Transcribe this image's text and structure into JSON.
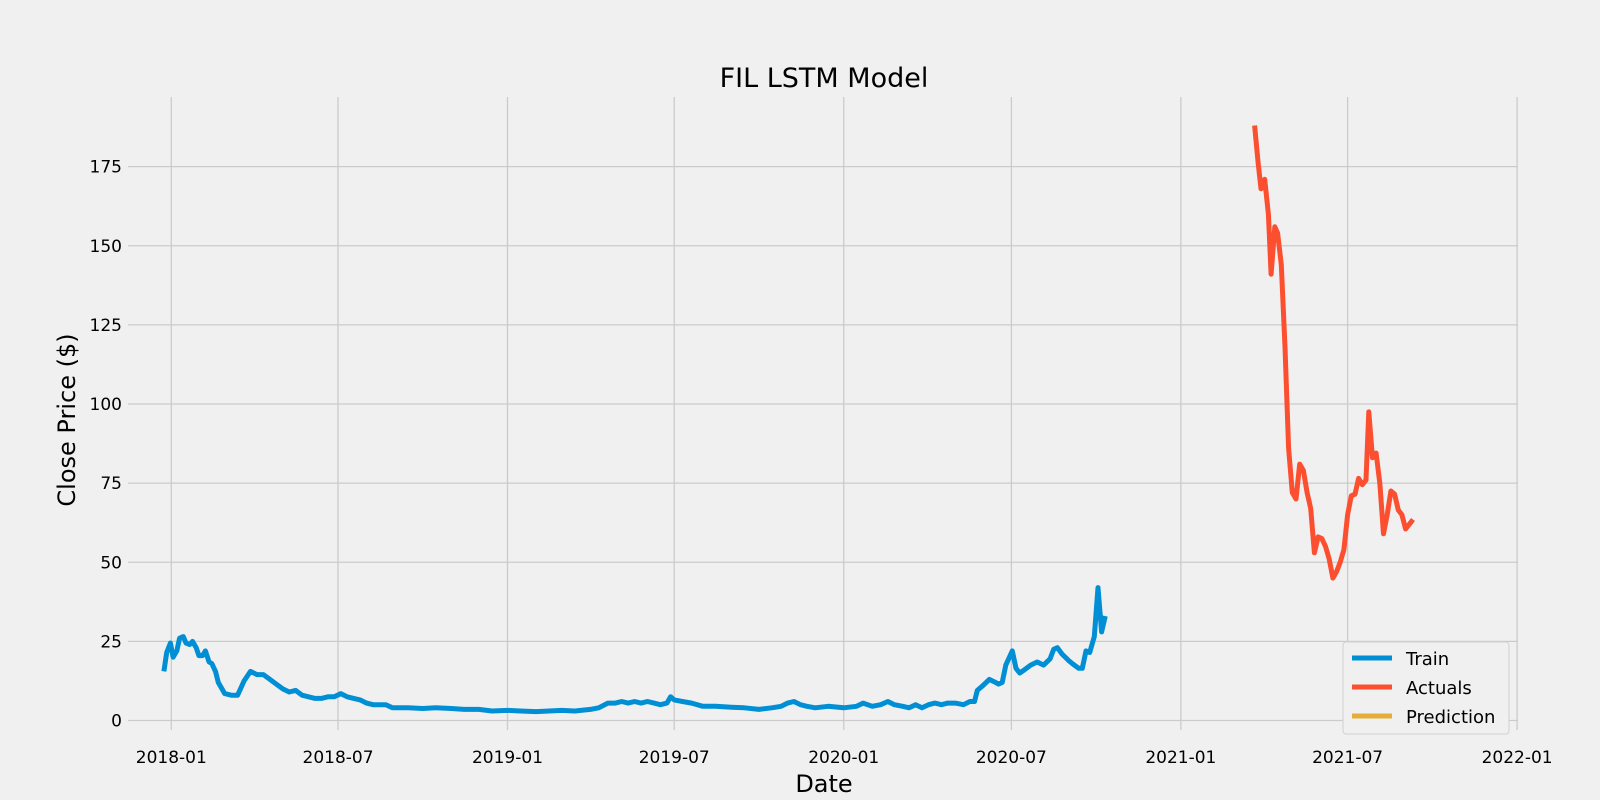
{
  "chart_data": {
    "type": "line",
    "title": "FIL LSTM Model",
    "xlabel": "Date",
    "ylabel": "Close Price ($)",
    "x_ticks": [
      "2018-01",
      "2018-07",
      "2019-01",
      "2019-07",
      "2020-01",
      "2020-07",
      "2021-01",
      "2021-07",
      "2022-01"
    ],
    "y_ticks": [
      0,
      25,
      50,
      75,
      100,
      125,
      150,
      175
    ],
    "ylim": [
      -3,
      197
    ],
    "xlim": [
      "2017-11-15",
      "2022-01-02"
    ],
    "grid": true,
    "legend_position": "bottom-right",
    "colors": {
      "background": "#f0f0f0",
      "grid": "#cbcbcb"
    },
    "series": [
      {
        "name": "Train",
        "color": "#008fd5",
        "points": [
          [
            "2017-12-24",
            15.5
          ],
          [
            "2017-12-27",
            21.5
          ],
          [
            "2017-12-31",
            24.5
          ],
          [
            "2018-01-03",
            20.0
          ],
          [
            "2018-01-07",
            22.0
          ],
          [
            "2018-01-10",
            26.0
          ],
          [
            "2018-01-14",
            26.5
          ],
          [
            "2018-01-17",
            24.5
          ],
          [
            "2018-01-21",
            24.0
          ],
          [
            "2018-01-24",
            25.0
          ],
          [
            "2018-01-28",
            23.0
          ],
          [
            "2018-01-31",
            20.5
          ],
          [
            "2018-02-04",
            20.5
          ],
          [
            "2018-02-07",
            22.0
          ],
          [
            "2018-02-11",
            18.5
          ],
          [
            "2018-02-14",
            18.0
          ],
          [
            "2018-02-18",
            15.5
          ],
          [
            "2018-02-21",
            12.0
          ],
          [
            "2018-02-25",
            10.0
          ],
          [
            "2018-02-28",
            8.5
          ],
          [
            "2018-03-07",
            8.0
          ],
          [
            "2018-03-14",
            8.0
          ],
          [
            "2018-03-21",
            12.5
          ],
          [
            "2018-03-28",
            15.5
          ],
          [
            "2018-04-04",
            14.5
          ],
          [
            "2018-04-11",
            14.5
          ],
          [
            "2018-04-18",
            13.0
          ],
          [
            "2018-04-25",
            11.5
          ],
          [
            "2018-05-02",
            10.0
          ],
          [
            "2018-05-09",
            9.0
          ],
          [
            "2018-05-16",
            9.5
          ],
          [
            "2018-05-23",
            8.0
          ],
          [
            "2018-05-30",
            7.5
          ],
          [
            "2018-06-06",
            7.0
          ],
          [
            "2018-06-13",
            7.0
          ],
          [
            "2018-06-20",
            7.5
          ],
          [
            "2018-06-27",
            7.5
          ],
          [
            "2018-07-04",
            8.5
          ],
          [
            "2018-07-11",
            7.5
          ],
          [
            "2018-07-18",
            7.0
          ],
          [
            "2018-07-25",
            6.5
          ],
          [
            "2018-08-01",
            5.5
          ],
          [
            "2018-08-08",
            5.0
          ],
          [
            "2018-08-15",
            5.0
          ],
          [
            "2018-08-22",
            5.0
          ],
          [
            "2018-08-29",
            4.0
          ],
          [
            "2018-09-15",
            4.0
          ],
          [
            "2018-10-01",
            3.8
          ],
          [
            "2018-10-15",
            4.0
          ],
          [
            "2018-11-01",
            3.8
          ],
          [
            "2018-11-15",
            3.5
          ],
          [
            "2018-12-01",
            3.5
          ],
          [
            "2018-12-15",
            3.0
          ],
          [
            "2019-01-01",
            3.2
          ],
          [
            "2019-01-15",
            3.0
          ],
          [
            "2019-02-01",
            2.8
          ],
          [
            "2019-02-15",
            3.0
          ],
          [
            "2019-03-01",
            3.2
          ],
          [
            "2019-03-15",
            3.0
          ],
          [
            "2019-04-01",
            3.5
          ],
          [
            "2019-04-10",
            4.0
          ],
          [
            "2019-04-20",
            5.5
          ],
          [
            "2019-04-28",
            5.5
          ],
          [
            "2019-05-05",
            6.0
          ],
          [
            "2019-05-12",
            5.5
          ],
          [
            "2019-05-19",
            6.0
          ],
          [
            "2019-05-26",
            5.5
          ],
          [
            "2019-06-02",
            6.0
          ],
          [
            "2019-06-09",
            5.5
          ],
          [
            "2019-06-16",
            5.0
          ],
          [
            "2019-06-23",
            5.5
          ],
          [
            "2019-06-27",
            7.5
          ],
          [
            "2019-07-01",
            6.5
          ],
          [
            "2019-07-10",
            6.0
          ],
          [
            "2019-07-20",
            5.5
          ],
          [
            "2019-08-01",
            4.5
          ],
          [
            "2019-08-15",
            4.5
          ],
          [
            "2019-09-01",
            4.2
          ],
          [
            "2019-09-15",
            4.0
          ],
          [
            "2019-10-01",
            3.5
          ],
          [
            "2019-10-15",
            4.0
          ],
          [
            "2019-10-25",
            4.5
          ],
          [
            "2019-11-01",
            5.5
          ],
          [
            "2019-11-08",
            6.0
          ],
          [
            "2019-11-15",
            5.0
          ],
          [
            "2019-11-22",
            4.5
          ],
          [
            "2019-12-01",
            4.0
          ],
          [
            "2019-12-15",
            4.5
          ],
          [
            "2020-01-01",
            4.0
          ],
          [
            "2020-01-15",
            4.5
          ],
          [
            "2020-01-22",
            5.5
          ],
          [
            "2020-02-01",
            4.5
          ],
          [
            "2020-02-10",
            5.0
          ],
          [
            "2020-02-18",
            6.0
          ],
          [
            "2020-02-25",
            5.0
          ],
          [
            "2020-03-05",
            4.5
          ],
          [
            "2020-03-12",
            4.0
          ],
          [
            "2020-03-19",
            5.0
          ],
          [
            "2020-03-26",
            4.0
          ],
          [
            "2020-04-02",
            5.0
          ],
          [
            "2020-04-09",
            5.5
          ],
          [
            "2020-04-16",
            5.0
          ],
          [
            "2020-04-23",
            5.5
          ],
          [
            "2020-05-01",
            5.5
          ],
          [
            "2020-05-10",
            5.0
          ],
          [
            "2020-05-17",
            6.0
          ],
          [
            "2020-05-22",
            6.0
          ],
          [
            "2020-05-25",
            9.5
          ],
          [
            "2020-05-31",
            11.0
          ],
          [
            "2020-06-07",
            13.0
          ],
          [
            "2020-06-14",
            12.0
          ],
          [
            "2020-06-17",
            11.5
          ],
          [
            "2020-06-21",
            12.0
          ],
          [
            "2020-06-25",
            17.5
          ],
          [
            "2020-07-02",
            22.0
          ],
          [
            "2020-07-06",
            16.5
          ],
          [
            "2020-07-10",
            15.0
          ],
          [
            "2020-07-15",
            16.0
          ],
          [
            "2020-07-22",
            17.5
          ],
          [
            "2020-07-29",
            18.5
          ],
          [
            "2020-08-05",
            17.5
          ],
          [
            "2020-08-12",
            19.5
          ],
          [
            "2020-08-16",
            22.5
          ],
          [
            "2020-08-20",
            23.0
          ],
          [
            "2020-08-25",
            21.0
          ],
          [
            "2020-09-01",
            19.0
          ],
          [
            "2020-09-05",
            18.0
          ],
          [
            "2020-09-12",
            16.5
          ],
          [
            "2020-09-16",
            16.5
          ],
          [
            "2020-09-20",
            22.0
          ],
          [
            "2020-09-24",
            21.5
          ],
          [
            "2020-09-29",
            26.5
          ],
          [
            "2020-10-03",
            42.0
          ],
          [
            "2020-10-07",
            28.0
          ],
          [
            "2020-10-11",
            33.0
          ]
        ]
      },
      {
        "name": "Actuals",
        "color": "#fc4f30",
        "points": [
          [
            "2021-03-22",
            188.0
          ],
          [
            "2021-03-26",
            176.0
          ],
          [
            "2021-03-29",
            168.0
          ],
          [
            "2021-04-02",
            171.0
          ],
          [
            "2021-04-06",
            160.0
          ],
          [
            "2021-04-09",
            141.0
          ],
          [
            "2021-04-13",
            156.0
          ],
          [
            "2021-04-16",
            154.0
          ],
          [
            "2021-04-20",
            144.0
          ],
          [
            "2021-04-24",
            118.0
          ],
          [
            "2021-04-28",
            86.0
          ],
          [
            "2021-05-02",
            72.0
          ],
          [
            "2021-05-06",
            70.0
          ],
          [
            "2021-05-10",
            81.0
          ],
          [
            "2021-05-14",
            79.0
          ],
          [
            "2021-05-18",
            72.0
          ],
          [
            "2021-05-22",
            67.0
          ],
          [
            "2021-05-26",
            53.0
          ],
          [
            "2021-05-30",
            58.0
          ],
          [
            "2021-06-03",
            57.5
          ],
          [
            "2021-06-07",
            55.0
          ],
          [
            "2021-06-11",
            51.0
          ],
          [
            "2021-06-15",
            45.0
          ],
          [
            "2021-06-19",
            47.0
          ],
          [
            "2021-06-23",
            50.0
          ],
          [
            "2021-06-27",
            54.0
          ],
          [
            "2021-07-01",
            65.0
          ],
          [
            "2021-07-05",
            71.0
          ],
          [
            "2021-07-09",
            71.5
          ],
          [
            "2021-07-13",
            76.5
          ],
          [
            "2021-07-17",
            74.5
          ],
          [
            "2021-07-21",
            76.0
          ],
          [
            "2021-07-24",
            97.5
          ],
          [
            "2021-07-28",
            83.0
          ],
          [
            "2021-08-01",
            84.5
          ],
          [
            "2021-08-05",
            75.0
          ],
          [
            "2021-08-09",
            59.0
          ],
          [
            "2021-08-13",
            65.0
          ],
          [
            "2021-08-17",
            72.5
          ],
          [
            "2021-08-21",
            71.5
          ],
          [
            "2021-08-25",
            66.5
          ],
          [
            "2021-08-29",
            65.0
          ],
          [
            "2021-09-02",
            60.5
          ],
          [
            "2021-09-06",
            62.0
          ],
          [
            "2021-09-10",
            63.5
          ]
        ]
      },
      {
        "name": "Prediction",
        "color": "#e5ae38",
        "points": []
      }
    ]
  }
}
